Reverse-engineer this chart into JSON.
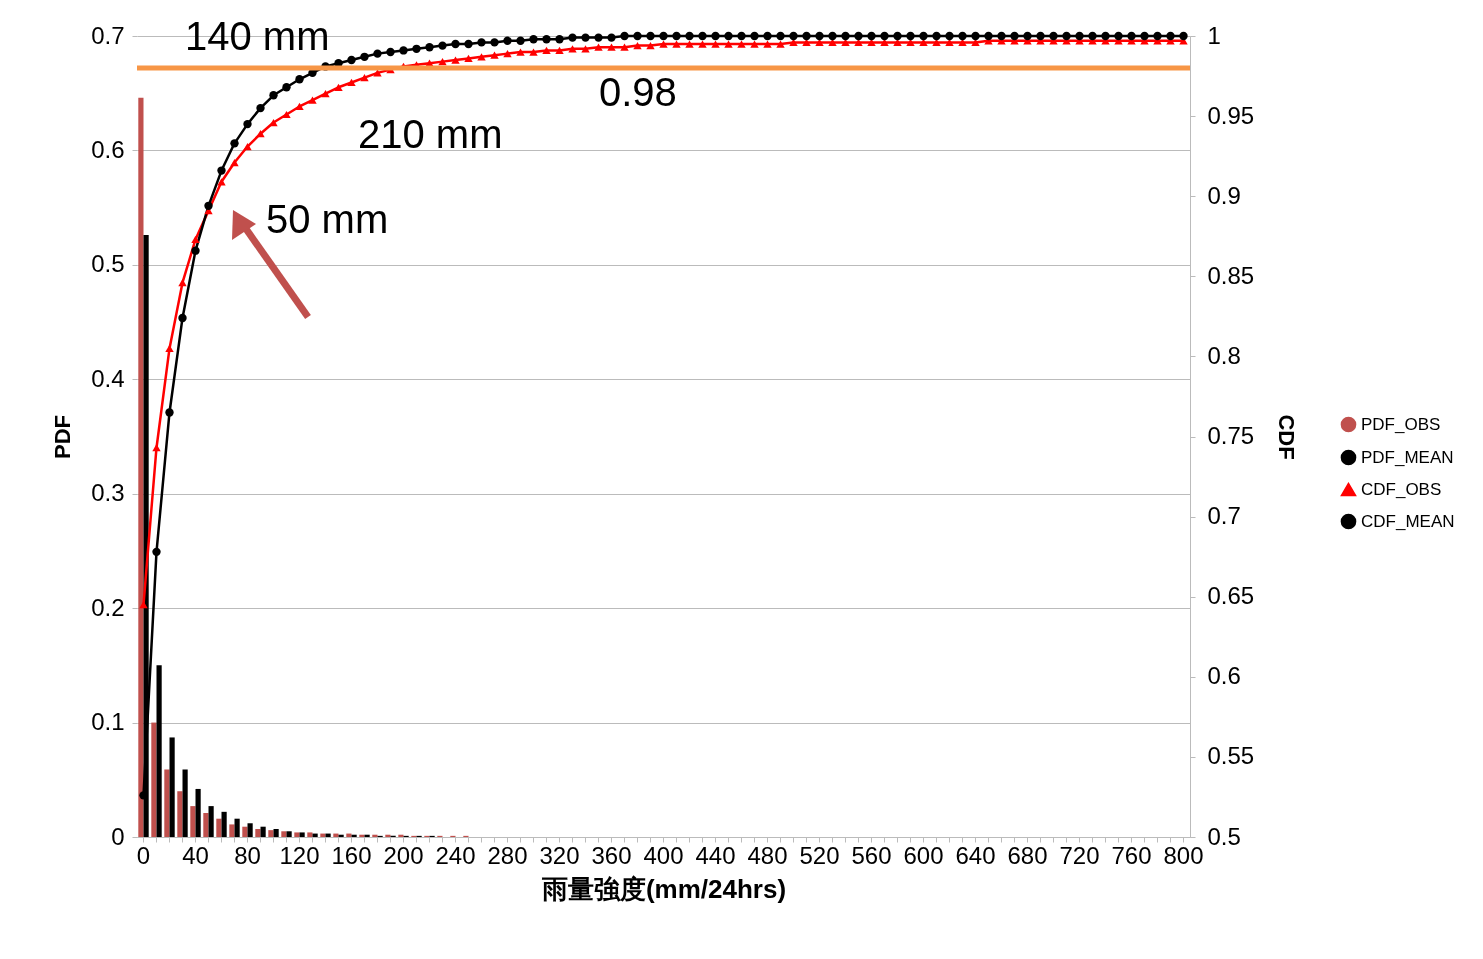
{
  "chart_data": {
    "type": "bar",
    "xlabel": "雨量強度(mm/24hrs)",
    "ylabel": "PDF",
    "y2label": "CDF",
    "categories": [
      "0",
      null,
      null,
      null,
      "40",
      null,
      null,
      null,
      "80",
      null,
      null,
      null,
      "120",
      null,
      null,
      null,
      "160",
      null,
      null,
      null,
      "200",
      null,
      null,
      null,
      "240",
      null,
      null,
      null,
      "280",
      null,
      null,
      null,
      "320",
      null,
      null,
      null,
      "360",
      null,
      null,
      null,
      "400",
      null,
      null,
      null,
      "440",
      null,
      null,
      null,
      "480",
      null,
      null,
      null,
      "520",
      null,
      null,
      null,
      "560",
      null,
      null,
      null,
      "600",
      null,
      null,
      null,
      "640",
      null,
      null,
      null,
      "680",
      null,
      null,
      null,
      "720",
      null,
      null,
      null,
      "760",
      null,
      null,
      null,
      "800"
    ],
    "series": [
      {
        "name": "PDF_OBS",
        "type": "bar",
        "color": "#c0504d",
        "values": [
          0.646,
          0.1,
          0.059,
          0.04,
          0.027,
          0.021,
          0.016,
          0.011,
          0.009,
          0.007,
          0.006,
          0.005,
          0.004,
          0.004,
          0.003,
          0.003,
          0.003,
          0.002,
          0.002,
          0.002,
          0.002,
          0.001,
          0.001,
          0.001,
          0.001,
          0.001,
          0,
          0,
          0,
          0,
          0,
          0,
          0,
          0,
          0,
          0,
          0,
          0,
          0,
          0,
          0,
          0,
          0,
          0,
          0,
          0,
          0,
          0,
          0,
          0,
          0,
          0,
          0,
          0,
          0,
          0,
          0,
          0,
          0,
          0,
          0,
          0,
          0,
          0,
          0,
          0,
          0,
          0,
          0,
          0,
          0,
          0,
          0,
          0,
          0,
          0,
          0,
          0,
          0,
          0,
          0
        ]
      },
      {
        "name": "PDF_MEAN",
        "type": "bar",
        "color": "#000000",
        "values": [
          0.526,
          0.15,
          0.087,
          0.059,
          0.042,
          0.027,
          0.022,
          0.016,
          0.012,
          0.009,
          0.007,
          0.005,
          0.004,
          0.003,
          0.003,
          0.002,
          0.002,
          0.002,
          0.001,
          0.001,
          0.001,
          0.001,
          0.001,
          0,
          0,
          0,
          0,
          0,
          0,
          0,
          0,
          0,
          0,
          0,
          0,
          0,
          0,
          0,
          0,
          0,
          0,
          0,
          0,
          0,
          0,
          0,
          0,
          0,
          0,
          0,
          0,
          0,
          0,
          0,
          0,
          0,
          0,
          0,
          0,
          0,
          0,
          0,
          0,
          0,
          0,
          0,
          0,
          0,
          0,
          0,
          0,
          0,
          0,
          0,
          0,
          0,
          0,
          0,
          0,
          0,
          0
        ]
      },
      {
        "name": "CDF_OBS",
        "type": "line",
        "axis": "y2",
        "marker": "triangle",
        "color": "#ff0000",
        "values": [
          0.645,
          0.743,
          0.805,
          0.846,
          0.873,
          0.891,
          0.909,
          0.921,
          0.931,
          0.939,
          0.946,
          0.951,
          0.956,
          0.96,
          0.964,
          0.968,
          0.971,
          0.974,
          0.977,
          0.979,
          0.981,
          0.982,
          0.983,
          0.984,
          0.985,
          0.986,
          0.987,
          0.988,
          0.989,
          0.99,
          0.99,
          0.991,
          0.991,
          0.992,
          0.992,
          0.993,
          0.993,
          0.993,
          0.994,
          0.994,
          0.995,
          0.995,
          0.995,
          0.995,
          0.995,
          0.995,
          0.995,
          0.995,
          0.995,
          0.995,
          0.996,
          0.996,
          0.996,
          0.996,
          0.996,
          0.996,
          0.996,
          0.996,
          0.996,
          0.996,
          0.996,
          0.996,
          0.996,
          0.996,
          0.996,
          0.997,
          0.997,
          0.997,
          0.997,
          0.997,
          0.997,
          0.997,
          0.997,
          0.997,
          0.997,
          0.997,
          0.997,
          0.997,
          0.997,
          0.997,
          0.997
        ]
      },
      {
        "name": "CDF_MEAN",
        "type": "line",
        "axis": "y2",
        "marker": "circle",
        "color": "#000000",
        "values": [
          0.526,
          0.678,
          0.765,
          0.824,
          0.866,
          0.894,
          0.916,
          0.933,
          0.945,
          0.955,
          0.963,
          0.968,
          0.973,
          0.977,
          0.981,
          0.983,
          0.985,
          0.987,
          0.989,
          0.99,
          0.991,
          0.992,
          0.993,
          0.994,
          0.995,
          0.995,
          0.996,
          0.996,
          0.997,
          0.997,
          0.998,
          0.998,
          0.998,
          0.999,
          0.999,
          0.999,
          0.999,
          1,
          1,
          1,
          1,
          1,
          1,
          1,
          1,
          1,
          1,
          1,
          1,
          1,
          1,
          1,
          1,
          1,
          1,
          1,
          1,
          1,
          1,
          1,
          1,
          1,
          1,
          1,
          1,
          1,
          1,
          1,
          1,
          1,
          1,
          1,
          1,
          1,
          1,
          1,
          1,
          1,
          1,
          1,
          1
        ]
      }
    ],
    "ylim": [
      0,
      0.7
    ],
    "yticks": [
      0,
      0.1,
      0.2,
      0.3,
      0.4,
      0.5,
      0.6,
      0.7
    ],
    "y2lim": [
      0.5,
      1
    ],
    "y2ticks": [
      0.5,
      0.55,
      0.6,
      0.65,
      0.7,
      0.75,
      0.8,
      0.85,
      0.9,
      0.95,
      1
    ],
    "ref_lines": [
      {
        "axis": "y2",
        "value": 0.98,
        "label": "0.98",
        "color": "#f79646"
      }
    ],
    "annotations": [
      "140 mm",
      "210 mm",
      "50 mm"
    ],
    "grid": "y",
    "legend": "right"
  }
}
